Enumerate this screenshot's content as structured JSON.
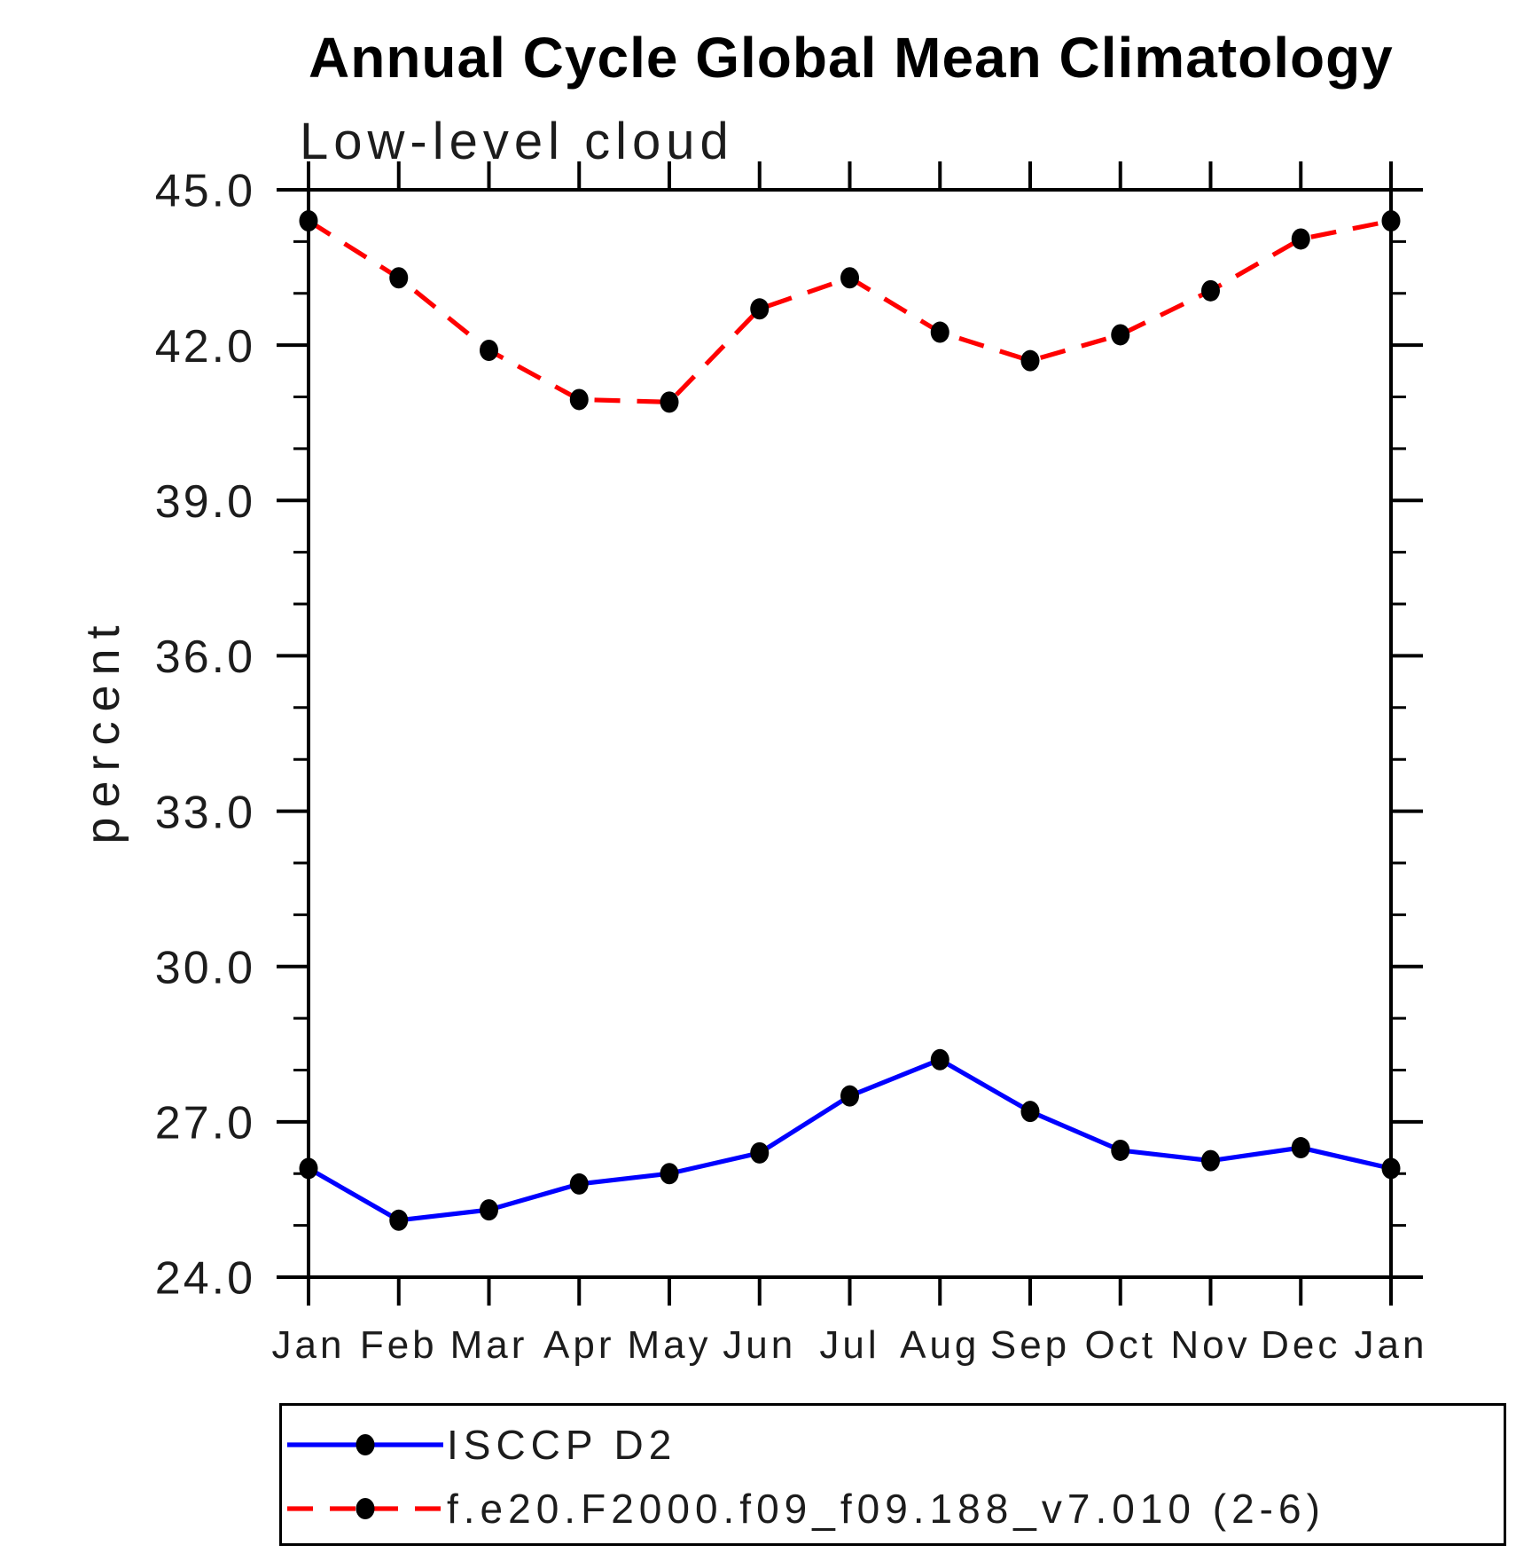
{
  "chart_data": {
    "type": "line",
    "title": "Annual Cycle Global Mean Climatology",
    "subtitle": "Low-level cloud",
    "xlabel": "",
    "ylabel": "percent",
    "categories": [
      "Jan",
      "Feb",
      "Mar",
      "Apr",
      "May",
      "Jun",
      "Jul",
      "Aug",
      "Sep",
      "Oct",
      "Nov",
      "Dec",
      "Jan"
    ],
    "series": [
      {
        "name": "ISCCP D2",
        "color": "#0000ff",
        "line_style": "solid",
        "marker": "filled-circle",
        "marker_color": "#000000",
        "values": [
          26.1,
          25.1,
          25.3,
          25.8,
          26.0,
          26.4,
          27.5,
          28.2,
          27.2,
          26.45,
          26.25,
          26.5,
          26.1
        ]
      },
      {
        "name": "f.e20.F2000.f09_f09.188_v7.010 (2-6)",
        "color": "#ff0000",
        "line_style": "dashed",
        "marker": "filled-circle",
        "marker_color": "#000000",
        "values": [
          44.4,
          43.3,
          41.9,
          40.95,
          40.9,
          42.7,
          43.3,
          42.25,
          41.7,
          42.2,
          43.05,
          44.05,
          44.4
        ]
      }
    ],
    "ylim": [
      24.0,
      45.0
    ],
    "yticks_major": [
      24,
      27,
      30,
      33,
      36,
      39,
      42,
      45
    ],
    "ytick_labels": [
      "24.0",
      "27.0",
      "30.0",
      "33.0",
      "36.0",
      "39.0",
      "42.0",
      "45.0"
    ],
    "ytick_minor_interval": 1,
    "grid": false,
    "tick_direction": "out",
    "frame": true,
    "legend_position": "bottom-left-box"
  }
}
